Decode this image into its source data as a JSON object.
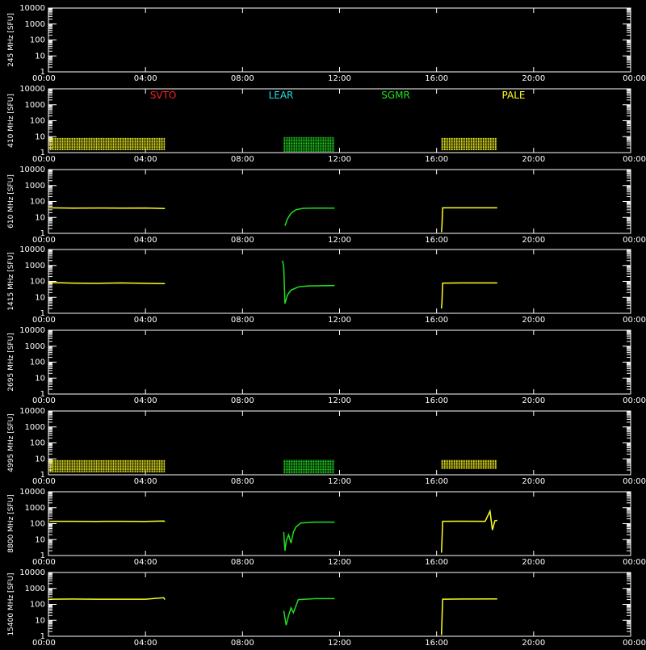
{
  "colors": {
    "background": "#000000",
    "axis": "#ffffff",
    "SVTO": "#ff2020",
    "LEAR": "#20e0e0",
    "SGMR": "#20e020",
    "PALE": "#ffff20"
  },
  "x_ticks": [
    "00:00",
    "04:00",
    "08:00",
    "12:00",
    "16:00",
    "20:00",
    "00:00"
  ],
  "y_ticks": [
    "1",
    "10",
    "100",
    "1000",
    "10000"
  ],
  "legend": [
    {
      "name": "SVTO",
      "color_key": "SVTO"
    },
    {
      "name": "LEAR",
      "color_key": "LEAR"
    },
    {
      "name": "SGMR",
      "color_key": "SGMR"
    },
    {
      "name": "PALE",
      "color_key": "PALE"
    }
  ],
  "chart_data": [
    {
      "type": "scatter",
      "ylabel": "245 MHz [SFU]",
      "yscale": "log",
      "ylim": [
        1,
        10000
      ],
      "xlim_hours": [
        0,
        24
      ],
      "series": []
    },
    {
      "type": "scatter",
      "ylabel": "410 MHz [SFU]",
      "yscale": "log",
      "ylim": [
        1,
        10000
      ],
      "xlim_hours": [
        0,
        24
      ],
      "series": [
        {
          "name": "PALE",
          "color_key": "PALE",
          "style": "band",
          "points": [
            [
              0.05,
              1.5
            ],
            [
              4.8,
              9
            ]
          ]
        },
        {
          "name": "SGMR",
          "color_key": "SGMR",
          "style": "band",
          "points": [
            [
              9.7,
              1.2
            ],
            [
              11.8,
              9
            ]
          ]
        },
        {
          "name": "PALE",
          "color_key": "PALE",
          "style": "band",
          "points": [
            [
              16.2,
              1.5
            ],
            [
              18.5,
              9
            ]
          ]
        }
      ]
    },
    {
      "type": "line",
      "ylabel": "610 MHz [SFU]",
      "yscale": "log",
      "ylim": [
        1,
        10000
      ],
      "xlim_hours": [
        0,
        24
      ],
      "series": [
        {
          "name": "PALE",
          "color_key": "PALE",
          "points": [
            [
              0.05,
              40
            ],
            [
              1.0,
              38
            ],
            [
              2.0,
              39
            ],
            [
              3.0,
              38
            ],
            [
              4.0,
              39
            ],
            [
              4.8,
              36
            ]
          ]
        },
        {
          "name": "SGMR",
          "color_key": "SGMR",
          "points": [
            [
              9.75,
              3
            ],
            [
              9.85,
              8
            ],
            [
              10.0,
              18
            ],
            [
              10.2,
              30
            ],
            [
              10.5,
              37
            ],
            [
              11.0,
              38
            ],
            [
              11.8,
              38
            ]
          ]
        },
        {
          "name": "PALE",
          "color_key": "PALE",
          "points": [
            [
              16.2,
              1.2
            ],
            [
              16.22,
              3
            ],
            [
              16.25,
              40
            ],
            [
              17.0,
              40
            ],
            [
              18.0,
              40
            ],
            [
              18.5,
              40
            ]
          ]
        }
      ]
    },
    {
      "type": "line",
      "ylabel": "1415 MHz [SFU]",
      "yscale": "log",
      "ylim": [
        1,
        10000
      ],
      "xlim_hours": [
        0,
        24
      ],
      "series": [
        {
          "name": "PALE",
          "color_key": "PALE",
          "points": [
            [
              0.05,
              85
            ],
            [
              1.0,
              78
            ],
            [
              2.0,
              76
            ],
            [
              3.0,
              80
            ],
            [
              4.0,
              76
            ],
            [
              4.8,
              72
            ]
          ]
        },
        {
          "name": "SGMR",
          "color_key": "SGMR",
          "points": [
            [
              9.65,
              2000
            ],
            [
              9.7,
              800
            ],
            [
              9.75,
              4
            ],
            [
              9.85,
              14
            ],
            [
              10.0,
              28
            ],
            [
              10.3,
              45
            ],
            [
              10.7,
              52
            ],
            [
              11.8,
              55
            ]
          ]
        },
        {
          "name": "PALE",
          "color_key": "PALE",
          "points": [
            [
              16.2,
              2
            ],
            [
              16.22,
              5
            ],
            [
              16.25,
              78
            ],
            [
              17.0,
              80
            ],
            [
              18.5,
              80
            ]
          ]
        }
      ]
    },
    {
      "type": "scatter",
      "ylabel": "2695 MHz [SFU]",
      "yscale": "log",
      "ylim": [
        1,
        10000
      ],
      "xlim_hours": [
        0,
        24
      ],
      "series": []
    },
    {
      "type": "scatter",
      "ylabel": "4995 MHz [SFU]",
      "yscale": "log",
      "ylim": [
        1,
        10000
      ],
      "xlim_hours": [
        0,
        24
      ],
      "series": [
        {
          "name": "PALE",
          "color_key": "PALE",
          "style": "band",
          "points": [
            [
              0.05,
              1.5
            ],
            [
              4.8,
              9
            ]
          ]
        },
        {
          "name": "SGMR",
          "color_key": "SGMR",
          "style": "band",
          "points": [
            [
              9.7,
              1.3
            ],
            [
              11.8,
              9
            ]
          ]
        },
        {
          "name": "PALE",
          "color_key": "PALE",
          "style": "band",
          "points": [
            [
              16.2,
              2.5
            ],
            [
              18.5,
              8
            ]
          ]
        }
      ]
    },
    {
      "type": "line",
      "ylabel": "8800 MHz [SFU]",
      "yscale": "log",
      "ylim": [
        1,
        10000
      ],
      "xlim_hours": [
        0,
        24
      ],
      "series": [
        {
          "name": "PALE",
          "color_key": "PALE",
          "points": [
            [
              0.05,
              140
            ],
            [
              1.0,
              140
            ],
            [
              2.0,
              138
            ],
            [
              3.0,
              140
            ],
            [
              4.0,
              138
            ],
            [
              4.75,
              145
            ],
            [
              4.8,
              135
            ]
          ]
        },
        {
          "name": "SGMR",
          "color_key": "SGMR",
          "points": [
            [
              9.7,
              30
            ],
            [
              9.75,
              2
            ],
            [
              9.8,
              8
            ],
            [
              9.9,
              20
            ],
            [
              10.0,
              6
            ],
            [
              10.1,
              30
            ],
            [
              10.2,
              60
            ],
            [
              10.4,
              110
            ],
            [
              11.0,
              125
            ],
            [
              11.8,
              125
            ]
          ]
        },
        {
          "name": "PALE",
          "color_key": "PALE",
          "points": [
            [
              16.2,
              1.5
            ],
            [
              16.22,
              8
            ],
            [
              16.25,
              140
            ],
            [
              17.0,
              142
            ],
            [
              18.0,
              140
            ],
            [
              18.2,
              600
            ],
            [
              18.3,
              40
            ],
            [
              18.4,
              150
            ],
            [
              18.5,
              160
            ]
          ]
        }
      ]
    },
    {
      "type": "line",
      "ylabel": "15400 MHz [SFU]",
      "yscale": "log",
      "ylim": [
        1,
        10000
      ],
      "xlim_hours": [
        0,
        24
      ],
      "series": [
        {
          "name": "PALE",
          "color_key": "PALE",
          "points": [
            [
              0.05,
              210
            ],
            [
              1.0,
              215
            ],
            [
              2.0,
              210
            ],
            [
              3.0,
              212
            ],
            [
              4.0,
              210
            ],
            [
              4.75,
              260
            ],
            [
              4.8,
              200
            ]
          ]
        },
        {
          "name": "SGMR",
          "color_key": "SGMR",
          "points": [
            [
              9.7,
              40
            ],
            [
              9.8,
              5
            ],
            [
              9.9,
              20
            ],
            [
              10.0,
              60
            ],
            [
              10.1,
              30
            ],
            [
              10.3,
              200
            ],
            [
              11.0,
              230
            ],
            [
              11.8,
              230
            ]
          ]
        },
        {
          "name": "PALE",
          "color_key": "PALE",
          "points": [
            [
              16.2,
              1.2
            ],
            [
              16.22,
              10
            ],
            [
              16.25,
              210
            ],
            [
              17.0,
              215
            ],
            [
              18.5,
              220
            ]
          ]
        }
      ]
    }
  ]
}
